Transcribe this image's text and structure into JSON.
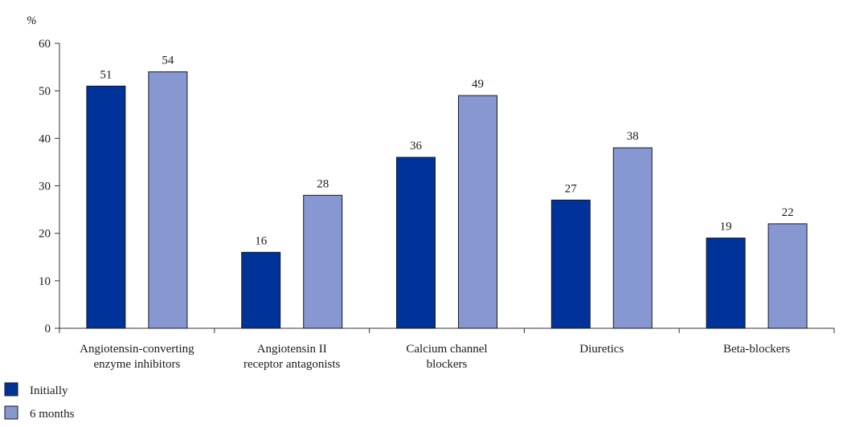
{
  "chart_data": {
    "type": "bar",
    "ylabel": "%",
    "ylim": [
      0,
      60
    ],
    "yticks": [
      0,
      10,
      20,
      30,
      40,
      50,
      60
    ],
    "grid": false,
    "legend_position": "bottom-left",
    "categories": [
      [
        "Angiotensin-converting",
        "enzyme inhibitors"
      ],
      [
        "Angiotensin II",
        "receptor antagonists"
      ],
      [
        "Calcium channel",
        "blockers"
      ],
      [
        "Diuretics"
      ],
      [
        "Beta-blockers"
      ]
    ],
    "series": [
      {
        "name": "Initially",
        "color": "#003399",
        "values": [
          51,
          16,
          36,
          27,
          19
        ]
      },
      {
        "name": "6 months",
        "color": "#8797d2",
        "values": [
          54,
          28,
          49,
          38,
          22
        ]
      }
    ]
  }
}
